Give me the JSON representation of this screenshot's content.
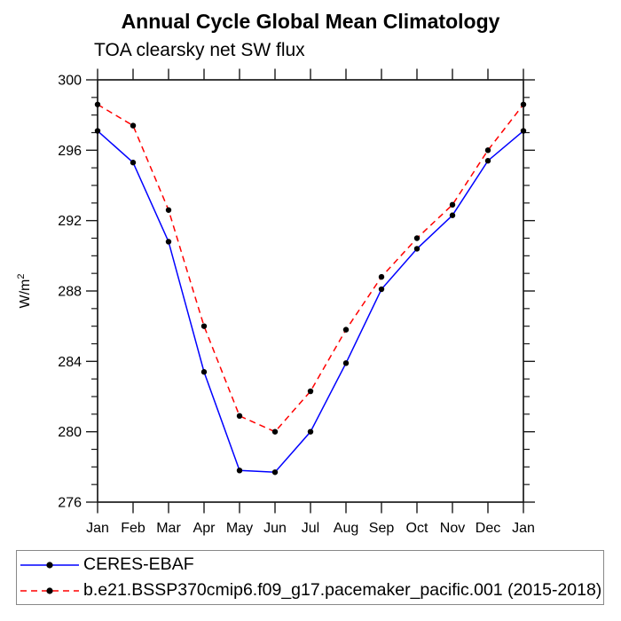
{
  "title": "Annual Cycle Global Mean Climatology",
  "subtitle": "TOA clearsky net SW flux",
  "chart_data": {
    "type": "line",
    "title": "Annual Cycle Global Mean Climatology",
    "subtitle": "TOA clearsky net SW flux",
    "xlabel": "",
    "ylabel": "W/m²",
    "ylabel_base": "W/m",
    "ylabel_exp": "2",
    "categories": [
      "Jan",
      "Feb",
      "Mar",
      "Apr",
      "May",
      "Jun",
      "Jul",
      "Aug",
      "Sep",
      "Oct",
      "Nov",
      "Dec",
      "Jan"
    ],
    "series": [
      {
        "name": "CERES-EBAF",
        "color": "#0000ff",
        "line_style": "solid",
        "marker": "filled-circle",
        "marker_color": "#000000",
        "values": [
          297.1,
          295.3,
          290.8,
          283.4,
          277.8,
          277.7,
          280.0,
          283.9,
          288.1,
          290.4,
          292.3,
          295.4,
          297.1
        ]
      },
      {
        "name": "b.e21.BSSP370cmip6.f09_g17.pacemaker_pacific.001 (2015-2018)",
        "color": "#ff0000",
        "line_style": "dashed",
        "marker": "filled-circle",
        "marker_color": "#000000",
        "values": [
          298.6,
          297.4,
          292.6,
          286.0,
          280.9,
          280.0,
          282.3,
          285.8,
          288.8,
          291.0,
          292.9,
          296.0,
          298.6
        ]
      }
    ],
    "ylim": [
      276,
      300
    ],
    "yticks": [
      276,
      280,
      284,
      288,
      292,
      296,
      300
    ],
    "y_minor_interval": 1,
    "grid": false,
    "legend_position": "bottom",
    "axis_color": "#1a1a1a",
    "tick_label_color": "#000000",
    "legend_border_color": "#888888"
  }
}
